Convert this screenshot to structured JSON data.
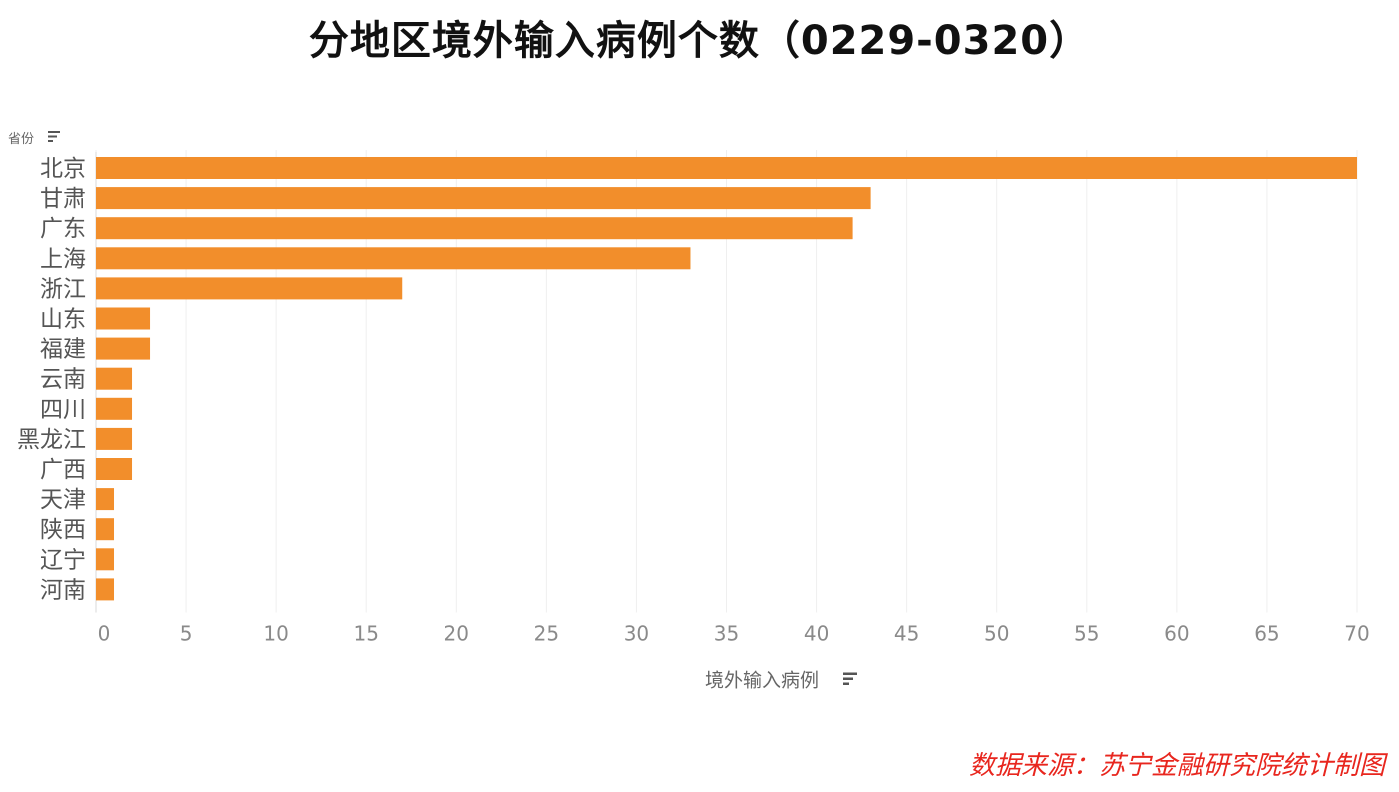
{
  "title": "分地区境外输入病例个数（0229-0320）",
  "source_note": "数据来源：苏宁金融研究院统计制图",
  "chart_data": {
    "type": "bar",
    "orientation": "horizontal",
    "title": "分地区境外输入病例个数（0229-0320）",
    "category_axis_title": "省份",
    "value_axis_title": "境外输入病例",
    "categories": [
      "北京",
      "甘肃",
      "广东",
      "上海",
      "浙江",
      "山东",
      "福建",
      "云南",
      "四川",
      "黑龙江",
      "广西",
      "天津",
      "陕西",
      "辽宁",
      "河南"
    ],
    "values": [
      70,
      43,
      42,
      33,
      17,
      3,
      3,
      2,
      2,
      2,
      2,
      1,
      1,
      1,
      1
    ],
    "xlim": [
      0,
      70
    ],
    "ticks": [
      0,
      5,
      10,
      15,
      20,
      25,
      30,
      35,
      40,
      45,
      50,
      55,
      60,
      65,
      70
    ],
    "bar_color": "#f28e2b",
    "grid": "vertical"
  }
}
